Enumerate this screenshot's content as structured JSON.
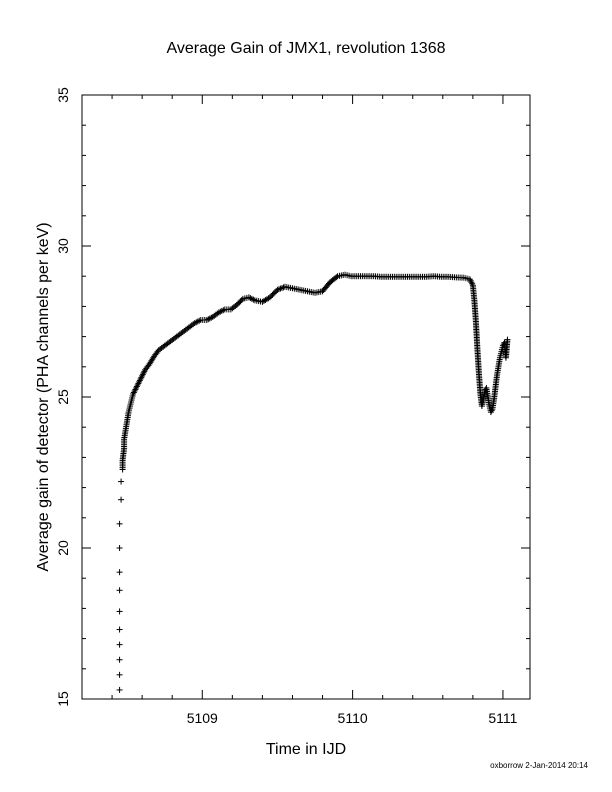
{
  "chart_data": {
    "type": "scatter",
    "title": "Average Gain of JMX1, revolution 1368",
    "xlabel": "Time in IJD",
    "ylabel": "Average gain of detector (PHA channels per keV)",
    "xlim": [
      5108.2,
      5111.18
    ],
    "ylim": [
      15,
      35
    ],
    "xticks": [
      5109,
      5110,
      5111
    ],
    "yticks": [
      15,
      20,
      25,
      30,
      35
    ],
    "marker": "+",
    "grid": false,
    "footer": "oxborrow  2-Jan-2014 20:14",
    "series": [
      {
        "x": [
          5108.45,
          5108.45,
          5108.45,
          5108.45,
          5108.45,
          5108.45,
          5108.45,
          5108.45,
          5108.45,
          5108.45,
          5108.46,
          5108.46,
          5108.47,
          5108.47,
          5108.48,
          5108.48,
          5108.49,
          5108.5,
          5108.51,
          5108.52,
          5108.53,
          5108.54,
          5108.56,
          5108.58,
          5108.6,
          5108.62,
          5108.65,
          5108.68,
          5108.71,
          5108.75,
          5108.79,
          5108.83,
          5108.87,
          5108.91,
          5108.95,
          5108.99,
          5109.03,
          5109.07,
          5109.11,
          5109.15,
          5109.19,
          5109.23,
          5109.27,
          5109.31,
          5109.35,
          5109.4,
          5109.45,
          5109.5,
          5109.55,
          5109.6,
          5109.65,
          5109.7,
          5109.75,
          5109.8,
          5109.85,
          5109.9,
          5109.95,
          5109.99,
          5110.04,
          5110.09,
          5110.14,
          5110.19,
          5110.24,
          5110.29,
          5110.34,
          5110.39,
          5110.44,
          5110.49,
          5110.54,
          5110.59,
          5110.64,
          5110.69,
          5110.74,
          5110.78,
          5110.8,
          5110.81,
          5110.82,
          5110.83,
          5110.84,
          5110.85,
          5110.86,
          5110.87,
          5110.88,
          5110.89,
          5110.9,
          5110.91,
          5110.92,
          5110.93,
          5110.94,
          5110.95,
          5110.96,
          5110.97,
          5110.98,
          5110.99,
          5111.0,
          5111.01,
          5111.02,
          5111.03
        ],
        "y": [
          15.3,
          15.8,
          16.3,
          16.8,
          17.3,
          17.9,
          18.6,
          19.2,
          20.0,
          20.8,
          21.6,
          22.2,
          22.6,
          22.9,
          23.3,
          23.6,
          23.9,
          24.2,
          24.5,
          24.7,
          24.9,
          25.1,
          25.3,
          25.5,
          25.7,
          25.9,
          26.1,
          26.35,
          26.55,
          26.7,
          26.85,
          27.0,
          27.15,
          27.3,
          27.45,
          27.55,
          27.55,
          27.65,
          27.8,
          27.9,
          27.9,
          28.05,
          28.25,
          28.3,
          28.2,
          28.15,
          28.3,
          28.55,
          28.65,
          28.6,
          28.55,
          28.5,
          28.45,
          28.5,
          28.8,
          29.0,
          29.05,
          29.0,
          29.0,
          29.0,
          29.0,
          28.98,
          28.98,
          28.98,
          28.98,
          28.98,
          28.98,
          28.98,
          29.0,
          28.98,
          28.98,
          28.96,
          28.95,
          28.9,
          28.7,
          28.2,
          27.5,
          26.6,
          25.8,
          25.1,
          24.7,
          24.9,
          25.2,
          25.3,
          25.0,
          24.7,
          24.5,
          24.6,
          24.9,
          25.3,
          25.7,
          26.0,
          26.3,
          26.5,
          26.7,
          26.8,
          26.3,
          26.9
        ]
      }
    ]
  }
}
